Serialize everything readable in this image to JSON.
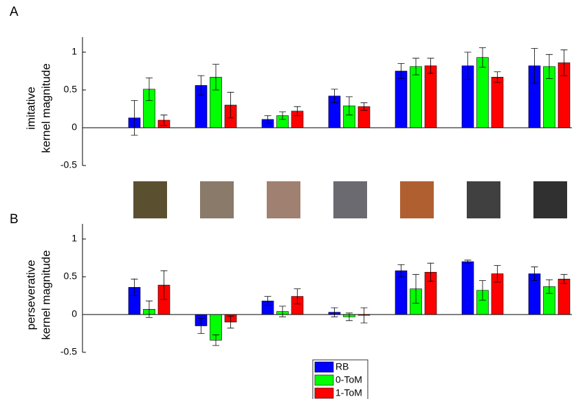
{
  "chart_data": [
    {
      "type": "bar",
      "label": "A",
      "ylabel": [
        "imitative",
        "kernel magnitude"
      ],
      "categories": [
        null,
        null,
        null,
        null,
        null,
        null,
        null
      ],
      "ylim": [
        -0.5,
        1.2
      ],
      "yticks": [
        -0.5,
        0,
        0.5,
        1
      ],
      "series": [
        {
          "name": "RB",
          "color": "#0000ff",
          "values": [
            0.13,
            0.56,
            0.11,
            0.42,
            0.75,
            0.82,
            0.82
          ],
          "errors": [
            0.23,
            0.13,
            0.05,
            0.09,
            0.1,
            0.18,
            0.23
          ]
        },
        {
          "name": "0-ToM",
          "color": "#00ff00",
          "values": [
            0.51,
            0.67,
            0.16,
            0.29,
            0.81,
            0.93,
            0.81
          ],
          "errors": [
            0.15,
            0.17,
            0.05,
            0.12,
            0.11,
            0.13,
            0.16
          ]
        },
        {
          "name": "1-ToM",
          "color": "#ff0000",
          "values": [
            0.1,
            0.3,
            0.22,
            0.28,
            0.82,
            0.67,
            0.86
          ],
          "errors": [
            0.07,
            0.17,
            0.06,
            0.05,
            0.1,
            0.07,
            0.17
          ]
        }
      ]
    },
    {
      "type": "bar",
      "label": "B",
      "ylabel": [
        "perseverative",
        "kernel magnitude"
      ],
      "categories": [
        null,
        null,
        null,
        null,
        null,
        null,
        null
      ],
      "ylim": [
        -0.5,
        1.2
      ],
      "yticks": [
        -0.5,
        0,
        0.5,
        1
      ],
      "legend": "bottom",
      "series": [
        {
          "name": "RB",
          "color": "#0000ff",
          "values": [
            0.36,
            -0.15,
            0.18,
            0.03,
            0.58,
            0.7,
            0.54
          ],
          "errors": [
            0.11,
            0.1,
            0.06,
            0.06,
            0.08,
            0.02,
            0.09
          ]
        },
        {
          "name": "0-ToM",
          "color": "#00ff00",
          "values": [
            0.07,
            -0.34,
            0.04,
            -0.03,
            0.34,
            0.32,
            0.37
          ],
          "errors": [
            0.11,
            0.07,
            0.07,
            0.05,
            0.19,
            0.13,
            0.09
          ]
        },
        {
          "name": "1-ToM",
          "color": "#ff0000",
          "values": [
            0.39,
            -0.1,
            0.24,
            -0.01,
            0.56,
            0.54,
            0.47
          ],
          "errors": [
            0.19,
            0.08,
            0.1,
            0.1,
            0.12,
            0.11,
            0.06
          ]
        }
      ]
    }
  ]
}
